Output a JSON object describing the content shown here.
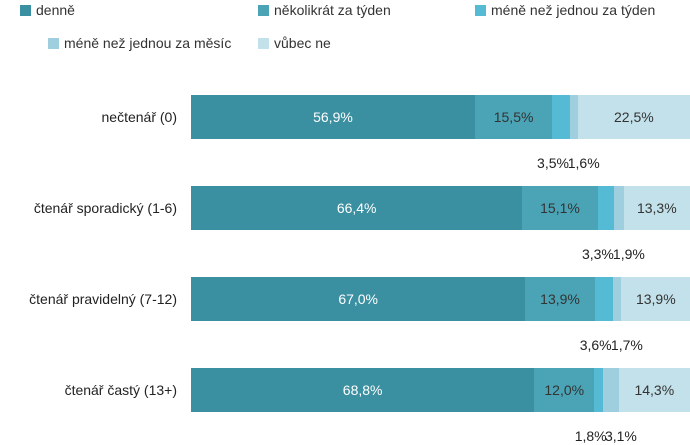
{
  "chart_data": {
    "type": "bar",
    "orientation": "horizontal",
    "stacked": true,
    "xlim": [
      0,
      100
    ],
    "legend_position": "top",
    "categories": [
      "nečtenář (0)",
      "čtenář sporadický  (1-6)",
      "čtenář pravidelný  (7-12)",
      "čtenář častý  (13+)"
    ],
    "series": [
      {
        "name": "denně",
        "color": "#3a8fa0",
        "values": [
          56.9,
          66.4,
          67.0,
          68.8
        ],
        "labels": [
          "56,9%",
          "66,4%",
          "67,0%",
          "68,8%"
        ]
      },
      {
        "name": "několikrát za týden",
        "color": "#4ba4b6",
        "values": [
          15.5,
          15.1,
          13.9,
          12.0
        ],
        "labels": [
          "15,5%",
          "15,1%",
          "13,9%",
          "12,0%"
        ]
      },
      {
        "name": "méně než jednou za týden",
        "color": "#55bad3",
        "values": [
          3.5,
          3.3,
          3.6,
          1.8
        ],
        "labels": [
          "3,5%",
          "3,3%",
          "3,6%",
          "1,8%"
        ]
      },
      {
        "name": "méně než jednou za měsíc",
        "color": "#9fcfdf",
        "values": [
          1.6,
          1.9,
          1.7,
          3.1
        ],
        "labels": [
          "1,6%",
          "1,9%",
          "1,7%",
          "3,1%"
        ]
      },
      {
        "name": "vůbec ne",
        "color": "#c3e1ea",
        "values": [
          22.5,
          13.3,
          13.9,
          14.3
        ],
        "labels": [
          "22,5%",
          "13,3%",
          "13,9%",
          "14,3%"
        ]
      }
    ]
  }
}
